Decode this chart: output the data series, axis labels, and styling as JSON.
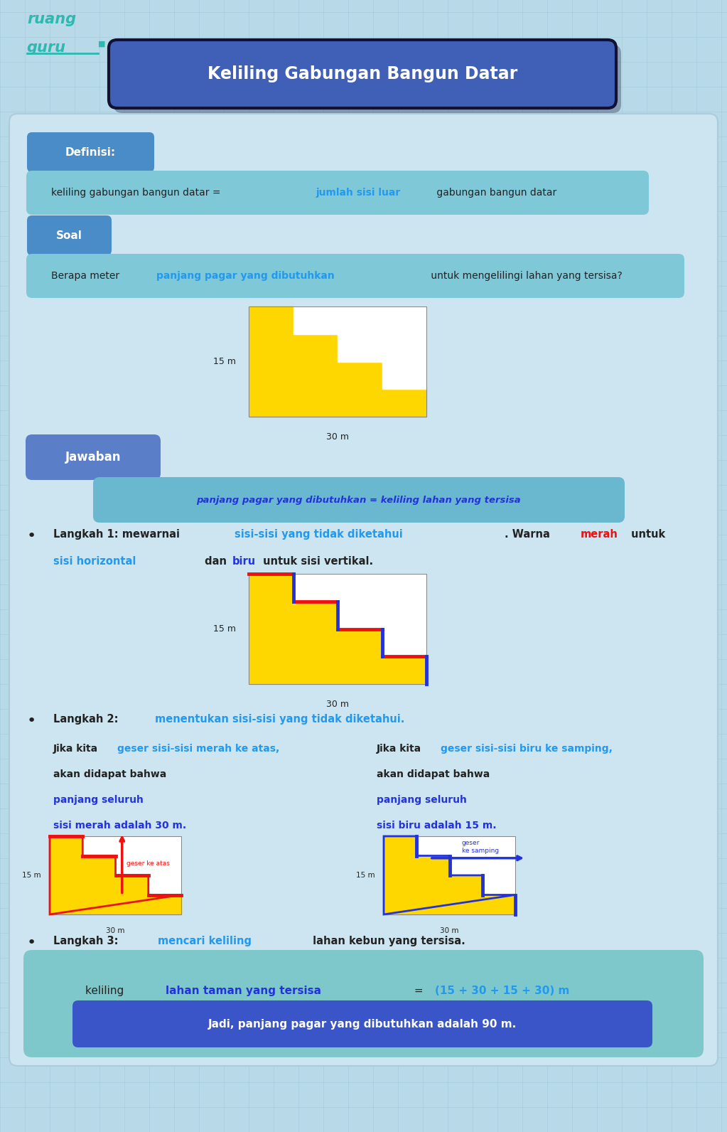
{
  "bg_color": "#b8d9e8",
  "grid_color": "#9ecad8",
  "title": "Keliling Gabungan Bangun Datar",
  "title_bg": "#4060b8",
  "title_color": "#ffffff",
  "logo_color": "#2db8b0",
  "main_box_bg": "#cce5f0",
  "definisi_label": "Definisi:",
  "definisi_label_bg": "#4a8cc7",
  "soal_label": "Soal",
  "soal_label_bg": "#4a8cc7",
  "info_box_bg": "#7ec8d8",
  "yellow": "#ffd700",
  "white": "#ffffff",
  "jawaban_label": "Jawaban",
  "jawaban_label_bg": "#5a7ec8",
  "langkah2_box_bg": "#6ab8d0",
  "red": "#ee1111",
  "blue": "#2233dd",
  "cyan": "#2299ee",
  "dark": "#222222",
  "formula_bg": "#7ec8cc",
  "result_bg": "#3a55c8",
  "result_text": "Jadi, panjang pagar yang dibutuhkan adalah 90 m."
}
